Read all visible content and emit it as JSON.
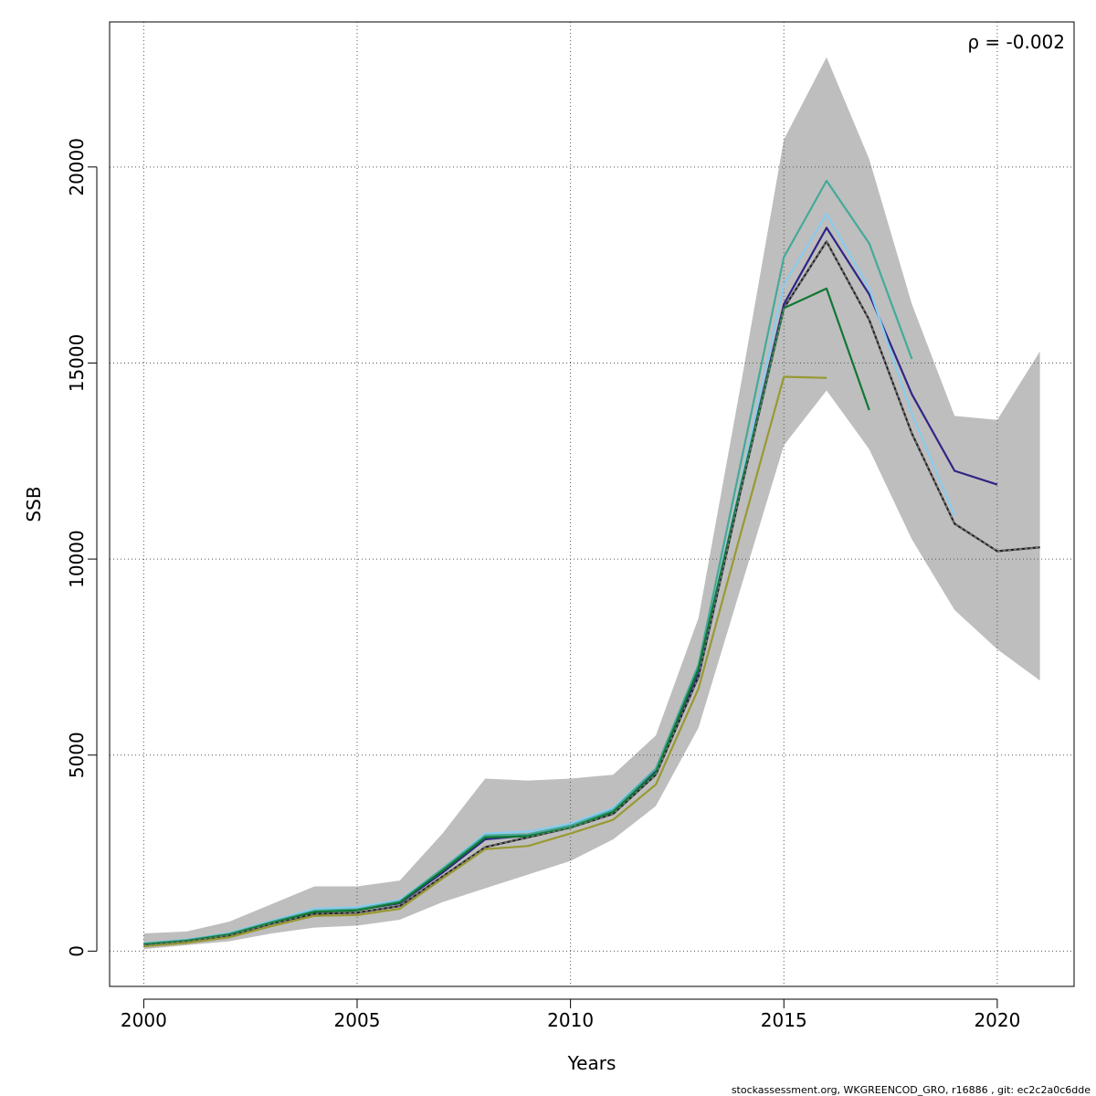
{
  "chart_data": {
    "type": "line",
    "xlabel": "Years",
    "ylabel": "SSB",
    "xlim": [
      1999.2,
      2021.8
    ],
    "ylim": [
      -900,
      23700
    ],
    "x_ticks": [
      2000,
      2005,
      2010,
      2015,
      2020
    ],
    "x_tick_labels": [
      "2000",
      "2005",
      "2010",
      "2015",
      "2020"
    ],
    "y_ticks": [
      0,
      5000,
      10000,
      15000,
      20000
    ],
    "y_tick_labels": [
      "0",
      "5000",
      "10000",
      "15000",
      "20000"
    ],
    "grid": true,
    "annotation": "ρ = -0.002",
    "footer": "stockassessment.org, WKGREENCOD_GRO, r16886 , git: ec2c2a0c6dde",
    "confidence_band": {
      "color": "#bebebe",
      "x": [
        2000,
        2001,
        2002,
        2003,
        2004,
        2005,
        2006,
        2007,
        2008,
        2009,
        2010,
        2011,
        2012,
        2013,
        2014,
        2015,
        2016,
        2017,
        2018,
        2019,
        2020,
        2021
      ],
      "upper": [
        450,
        500,
        750,
        1200,
        1650,
        1650,
        1800,
        3000,
        4400,
        4350,
        4400,
        4500,
        5500,
        8500,
        14500,
        20700,
        22800,
        20200,
        16500,
        13650,
        13550,
        15300
      ],
      "lower": [
        50,
        150,
        250,
        450,
        600,
        650,
        800,
        1250,
        1600,
        1950,
        2300,
        2850,
        3700,
        5700,
        9300,
        12900,
        14300,
        12800,
        10500,
        8700,
        7700,
        6900
      ]
    },
    "series": [
      {
        "color": "#222222",
        "dashed": false,
        "x": [
          2000,
          2001,
          2002,
          2003,
          2004,
          2005,
          2006,
          2007,
          2008,
          2009,
          2010,
          2011,
          2012,
          2013,
          2014,
          2015,
          2016,
          2017,
          2018,
          2019,
          2020,
          2021
        ],
        "values": [
          150,
          250,
          400,
          700,
          950,
          980,
          1150,
          1900,
          2650,
          2900,
          3150,
          3500,
          4500,
          7000,
          11800,
          16400,
          18100,
          16100,
          13200,
          10900,
          10200,
          10300
        ]
      },
      {
        "color": "#2e2585",
        "dashed": false,
        "x": [
          2000,
          2001,
          2002,
          2003,
          2004,
          2005,
          2006,
          2007,
          2008,
          2009,
          2010,
          2011,
          2012,
          2013,
          2014,
          2015,
          2016,
          2017,
          2018,
          2019,
          2020
        ],
        "values": [
          180,
          270,
          430,
          730,
          1000,
          1050,
          1220,
          2000,
          2850,
          2950,
          3200,
          3550,
          4600,
          7100,
          11900,
          16500,
          18450,
          16750,
          14200,
          12250,
          11900
        ]
      },
      {
        "color": "#88ccee",
        "dashed": false,
        "x": [
          2000,
          2001,
          2002,
          2003,
          2004,
          2005,
          2006,
          2007,
          2008,
          2009,
          2010,
          2011,
          2012,
          2013,
          2014,
          2015,
          2016,
          2017,
          2018,
          2019
        ],
        "values": [
          200,
          290,
          460,
          770,
          1080,
          1120,
          1300,
          2100,
          3000,
          3050,
          3250,
          3650,
          4650,
          7200,
          12000,
          17000,
          18800,
          16900,
          13700,
          11100
        ]
      },
      {
        "color": "#44aa99",
        "dashed": false,
        "x": [
          2000,
          2001,
          2002,
          2003,
          2004,
          2005,
          2006,
          2007,
          2008,
          2009,
          2010,
          2011,
          2012,
          2013,
          2014,
          2015,
          2016,
          2017,
          2018
        ],
        "values": [
          190,
          280,
          440,
          750,
          1030,
          1070,
          1270,
          2100,
          2950,
          2980,
          3200,
          3600,
          4650,
          7300,
          12500,
          17700,
          19650,
          18050,
          15100
        ]
      },
      {
        "color": "#117733",
        "dashed": false,
        "x": [
          2000,
          2001,
          2002,
          2003,
          2004,
          2005,
          2006,
          2007,
          2008,
          2009,
          2010,
          2011,
          2012,
          2013,
          2014,
          2015,
          2016,
          2017
        ],
        "values": [
          170,
          260,
          420,
          720,
          1000,
          1040,
          1240,
          2050,
          2900,
          2930,
          3150,
          3550,
          4550,
          7200,
          11900,
          16400,
          16900,
          13800
        ]
      },
      {
        "color": "#999933",
        "dashed": false,
        "x": [
          2000,
          2001,
          2002,
          2003,
          2004,
          2005,
          2006,
          2007,
          2008,
          2009,
          2010,
          2011,
          2012,
          2013,
          2014,
          2015,
          2016
        ],
        "values": [
          120,
          210,
          350,
          640,
          900,
          920,
          1080,
          1850,
          2600,
          2680,
          3000,
          3350,
          4250,
          6700,
          10700,
          14650,
          14620
        ]
      },
      {
        "color": "#777777",
        "dashed": true,
        "x": [
          2000,
          2001,
          2002,
          2003,
          2004,
          2005,
          2006,
          2007,
          2008,
          2009,
          2010,
          2011,
          2012,
          2013,
          2014,
          2015,
          2016,
          2017,
          2018,
          2019,
          2020,
          2021
        ],
        "values": [
          150,
          250,
          400,
          700,
          950,
          980,
          1150,
          1900,
          2650,
          2900,
          3150,
          3500,
          4500,
          7000,
          11800,
          16400,
          18100,
          16100,
          13200,
          10900,
          10200,
          10300
        ]
      }
    ]
  }
}
